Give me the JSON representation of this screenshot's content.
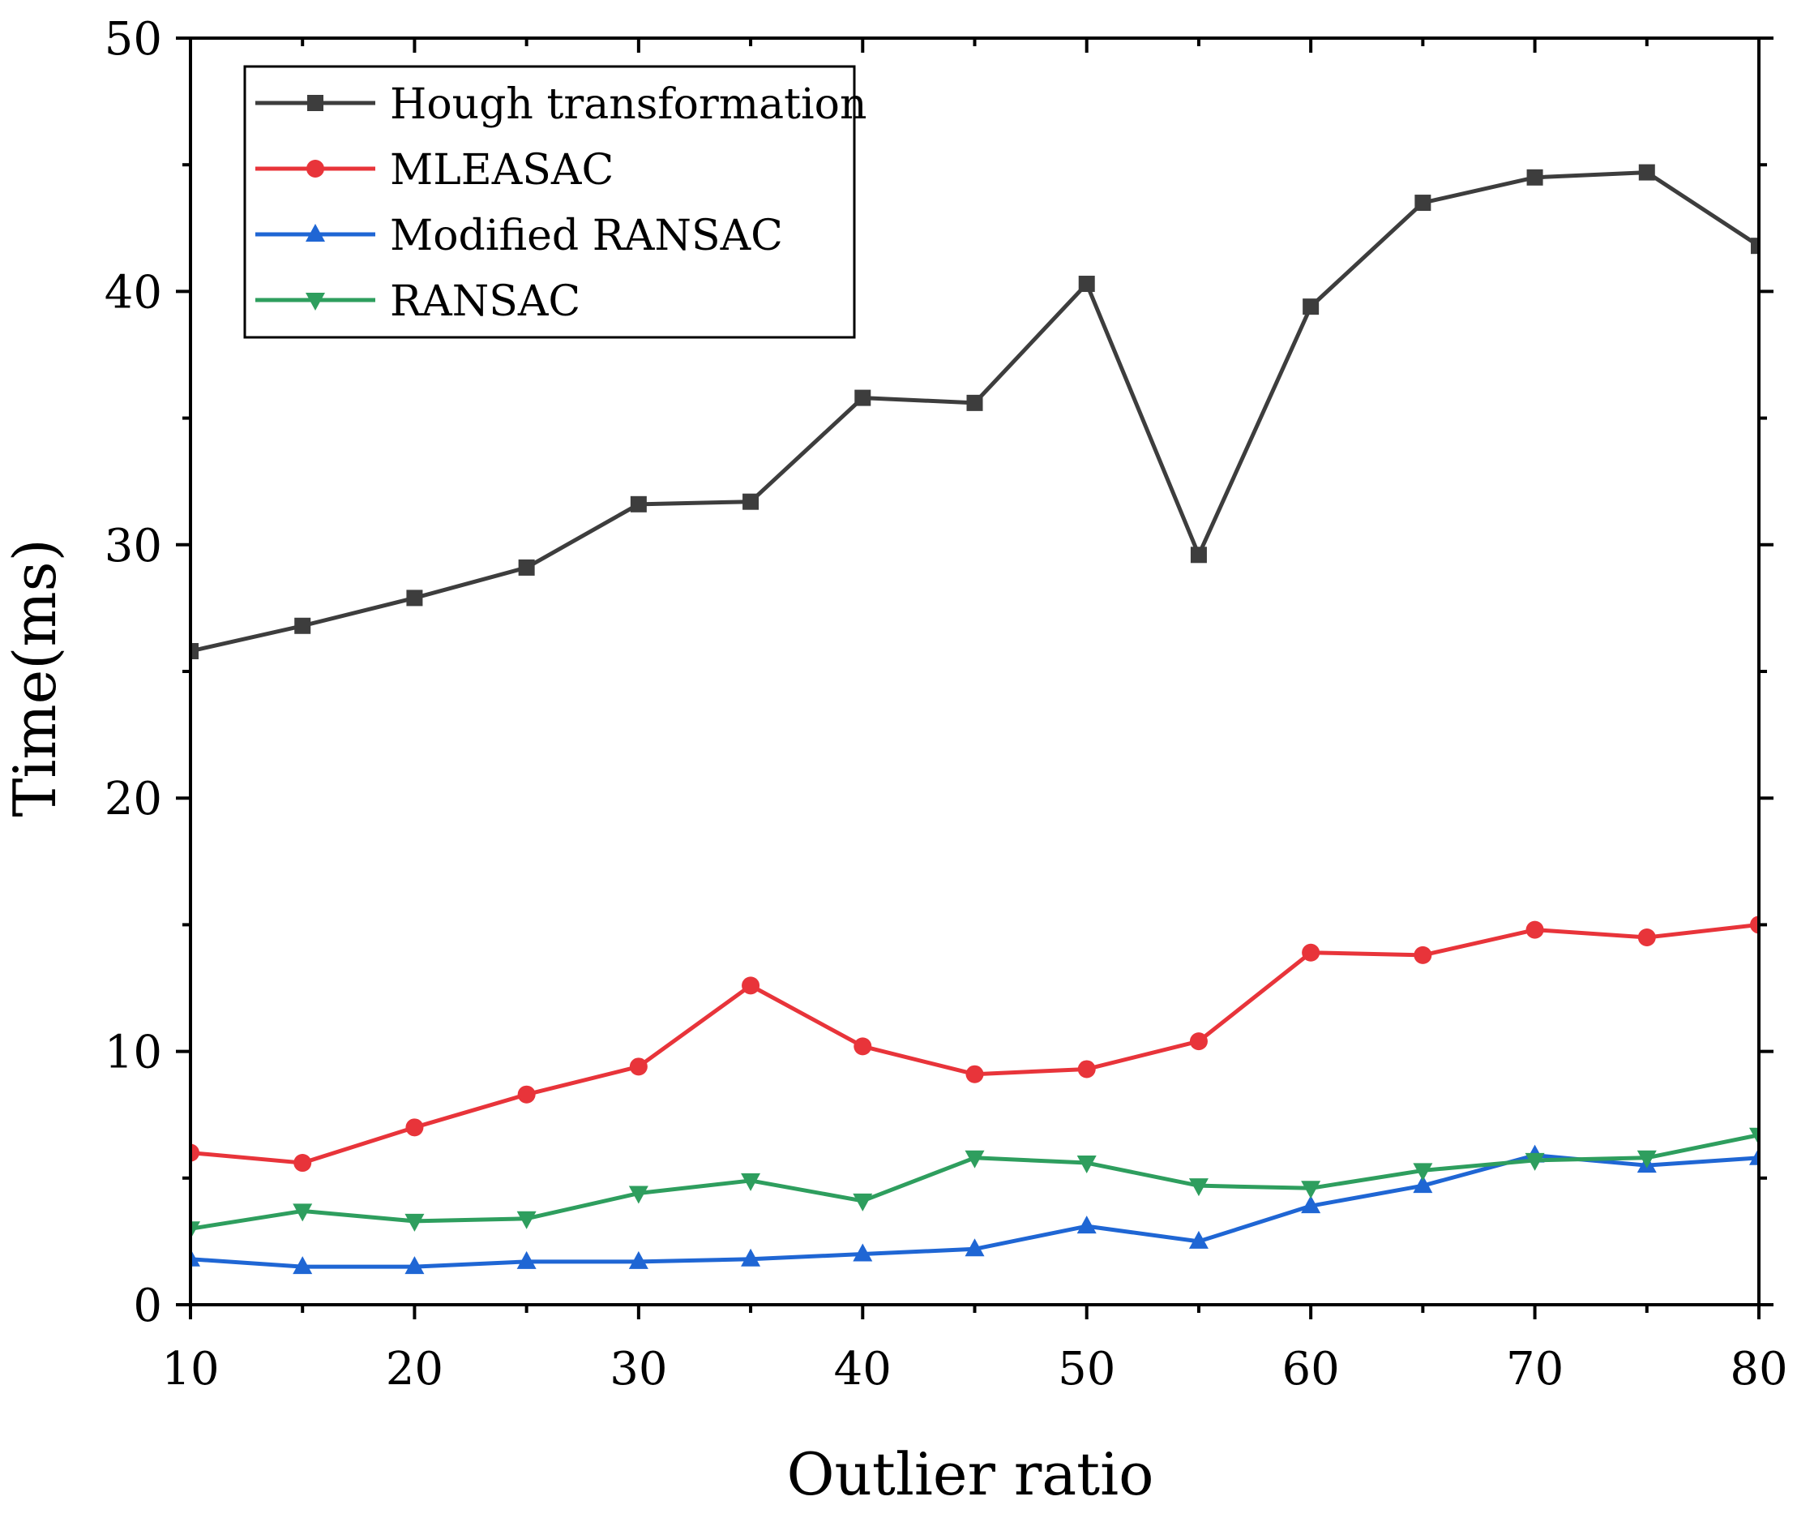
{
  "chart_data": {
    "type": "line",
    "title": "",
    "xlabel": "Outlier ratio",
    "ylabel": "Time(ms)",
    "xlim": [
      10,
      80
    ],
    "ylim": [
      0,
      50
    ],
    "xticks": [
      10,
      20,
      30,
      40,
      50,
      60,
      70,
      80
    ],
    "yticks": [
      0,
      10,
      20,
      30,
      40,
      50
    ],
    "grid": false,
    "legend_position": "top-left",
    "x": [
      10,
      15,
      20,
      25,
      30,
      35,
      40,
      45,
      50,
      55,
      60,
      65,
      70,
      75,
      80
    ],
    "series": [
      {
        "name": "Hough transformation",
        "color": "#3d3d3d",
        "marker": "square",
        "values": [
          25.8,
          26.8,
          27.9,
          29.1,
          31.6,
          31.7,
          35.8,
          35.6,
          40.3,
          29.6,
          39.4,
          43.5,
          44.5,
          44.7,
          41.8
        ]
      },
      {
        "name": "MLEASAC",
        "color": "#e8343a",
        "marker": "circle",
        "values": [
          6.0,
          5.6,
          7.0,
          8.3,
          9.4,
          12.6,
          10.2,
          9.1,
          9.3,
          10.4,
          13.9,
          13.8,
          14.8,
          14.5,
          15.0
        ]
      },
      {
        "name": "Modified RANSAC",
        "color": "#1f66d4",
        "marker": "triangle-up",
        "values": [
          1.8,
          1.5,
          1.5,
          1.7,
          1.7,
          1.8,
          2.0,
          2.2,
          3.1,
          2.5,
          3.9,
          4.7,
          5.9,
          5.5,
          5.8
        ]
      },
      {
        "name": "RANSAC",
        "color": "#2e9e5e",
        "marker": "triangle-down",
        "values": [
          3.0,
          3.7,
          3.3,
          3.4,
          4.4,
          4.9,
          4.1,
          5.8,
          5.6,
          4.7,
          4.6,
          5.3,
          5.7,
          5.8,
          6.7
        ]
      }
    ]
  }
}
